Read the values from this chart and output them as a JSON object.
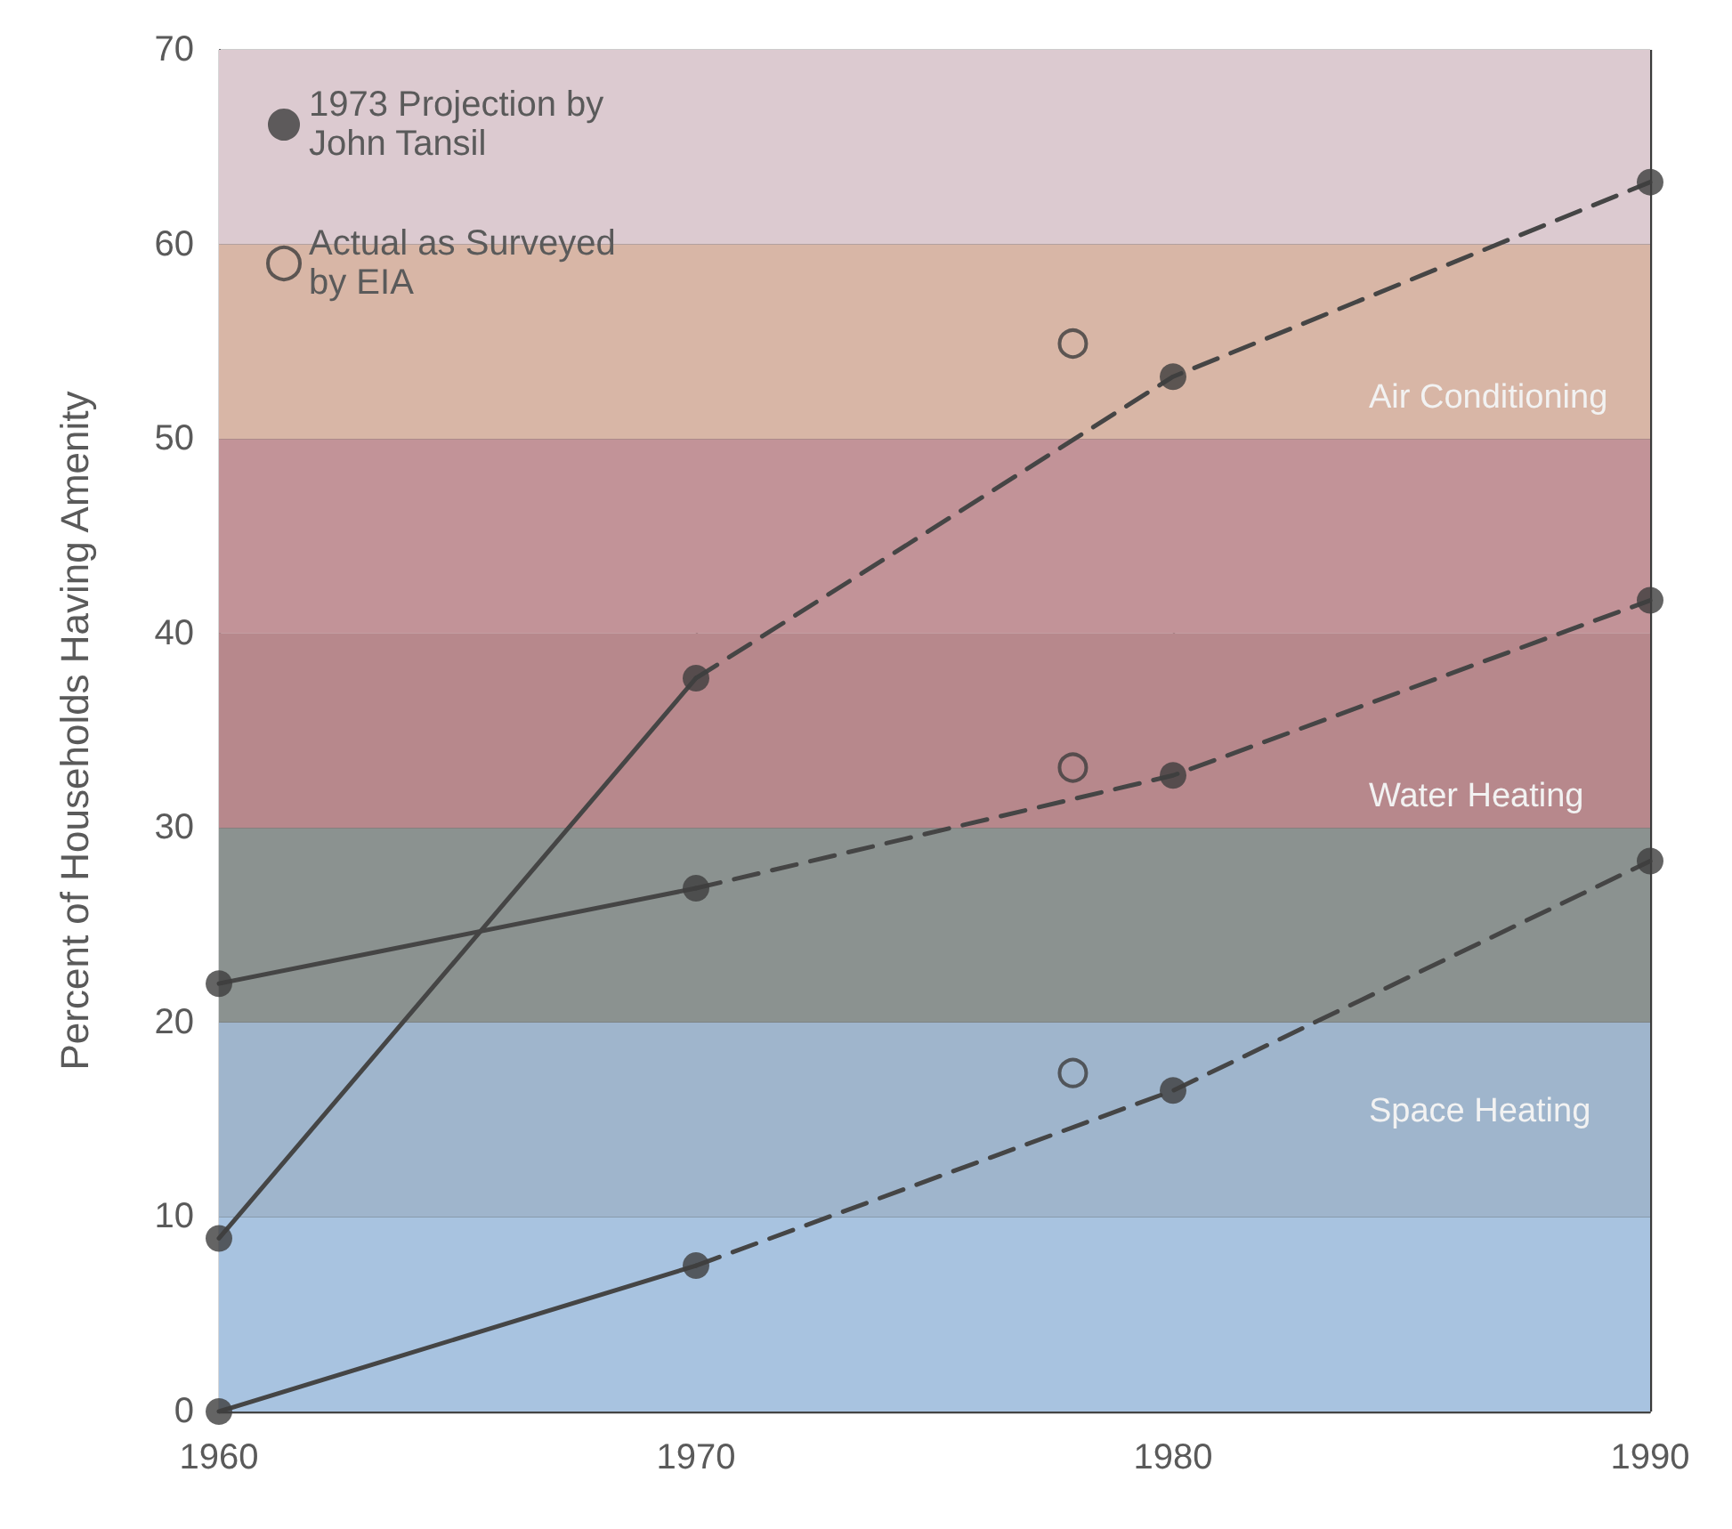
{
  "chart_data": {
    "type": "line",
    "ylabel": "Percent of Households Having Amenity",
    "xlim": [
      1960,
      1990
    ],
    "xticks": [
      1960,
      1970,
      1980,
      1990
    ],
    "ylim": [
      0,
      70
    ],
    "yticks": [
      0,
      10,
      20,
      30,
      40,
      50,
      60,
      70
    ],
    "grid": true,
    "legend": "top left",
    "bands": [
      {
        "axis": "y",
        "from": 0,
        "to": 10,
        "color": "#a8c3e0"
      },
      {
        "axis": "y",
        "from": 10,
        "to": 20,
        "color": "#9fb5cc"
      },
      {
        "axis": "y",
        "from": 20,
        "to": 30,
        "color": "#8b9290"
      },
      {
        "axis": "y",
        "from": 30,
        "to": 40,
        "color": "#b7888c"
      },
      {
        "axis": "y",
        "from": 40,
        "to": 50,
        "color": "#c29398"
      },
      {
        "axis": "y",
        "from": 50,
        "to": 60,
        "color": "#d8b6a6"
      },
      {
        "axis": "y",
        "from": 60,
        "to": 70,
        "color": "#dccad0"
      }
    ],
    "series": [
      {
        "color": "#454545",
        "line_style": "solid",
        "marker": "none",
        "x": [
          1960,
          1970
        ],
        "values": [
          8.9,
          37.7
        ]
      },
      {
        "name": "Air Conditioning",
        "color": "#454545",
        "line_style": "dashed",
        "marker": "none",
        "x": [
          1970,
          1980,
          1990
        ],
        "values": [
          37.7,
          53.2,
          63.2
        ]
      },
      {
        "color": "#454545",
        "line_style": "solid",
        "marker": "none",
        "x": [
          1960,
          1970
        ],
        "values": [
          22,
          26.9
        ]
      },
      {
        "name": "Water Heating",
        "color": "#454545",
        "line_style": "dashed",
        "marker": "none",
        "x": [
          1970,
          1980,
          1990
        ],
        "values": [
          26.9,
          32.7,
          41.7
        ]
      },
      {
        "color": "#454545",
        "line_style": "solid",
        "marker": "none",
        "x": [
          1960,
          1970
        ],
        "values": [
          0,
          7.5
        ]
      },
      {
        "name": "Space Heating",
        "color": "#454545",
        "line_style": "dashed",
        "marker": "none",
        "x": [
          1970,
          1980,
          1990
        ],
        "values": [
          7.5,
          16.5,
          28.3
        ]
      },
      {
        "type": "scatter",
        "name": "1973 Projection by John Tansil",
        "color": "#3d3d3d",
        "marker": "circle",
        "x": [
          1960,
          1970,
          1980,
          1990,
          1960,
          1970,
          1980,
          1990,
          1960,
          1970,
          1980,
          1990
        ],
        "values": [
          8.9,
          37.7,
          53.2,
          63.2,
          22,
          26.9,
          32.7,
          41.7,
          0,
          7.5,
          16.5,
          28.3
        ]
      },
      {
        "type": "scatter",
        "name": "Actual as Surveyed by EIA",
        "color": "#3d3d3d",
        "marker": "emptyCircle",
        "x": [
          1977.9,
          1977.9,
          1977.9
        ],
        "values": [
          54.9,
          33.1,
          17.4
        ]
      }
    ]
  }
}
